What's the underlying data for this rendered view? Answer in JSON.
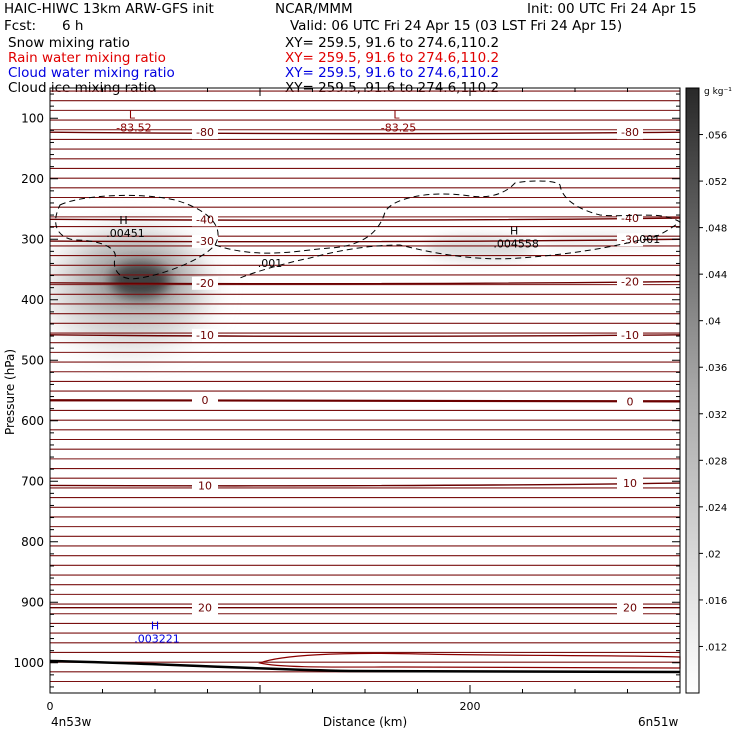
{
  "header": {
    "model": "HAIC-HIWC 13km ARW-GFS init",
    "org": "NCAR/MMM",
    "init": "Init: 00 UTC Fri 24 Apr 15",
    "fcst_label": "Fcst:",
    "fcst_value": "6 h",
    "valid": "Valid: 06 UTC Fri 24 Apr 15 (03 LST Fri 24 Apr 15)",
    "fields": [
      {
        "name": "Snow mixing ratio",
        "xy": "XY= 259.5, 91.6 to 274.6,110.2",
        "color": "#000000"
      },
      {
        "name": "Rain water mixing ratio",
        "xy": "XY= 259.5, 91.6 to 274.6,110.2",
        "color": "#e00000"
      },
      {
        "name": "Cloud water mixing ratio",
        "xy": "XY= 259.5, 91.6 to 274.6,110.2",
        "color": "#0000e0"
      },
      {
        "name": "Cloud ice mixing ratio",
        "xy": "XY= 259.5, 91.6 to 274.6,110.2",
        "color": "#000000"
      }
    ]
  },
  "chart_data": {
    "type": "heatmap",
    "title": "",
    "xlabel": "Distance (km)",
    "ylabel": "Pressure (hPa)",
    "x_range": [
      0,
      300
    ],
    "y_range": [
      1050,
      50
    ],
    "y_ticks": [
      100,
      200,
      300,
      400,
      500,
      600,
      700,
      800,
      900,
      1000
    ],
    "x_ticks": [
      0,
      200
    ],
    "x_end_labels": {
      "left": "4n53w",
      "right": "6n51w"
    },
    "colorbar": {
      "unit": "g kg⁻¹",
      "labels": [
        ".012",
        ".016",
        ".02",
        ".024",
        ".028",
        ".032",
        ".036",
        ".04",
        ".044",
        ".048",
        ".052",
        ".056"
      ],
      "range": [
        0.008,
        0.06
      ]
    },
    "temperature_contours": [
      {
        "level": "-80",
        "p_left": 123,
        "p_right": 123
      },
      {
        "level": "-40",
        "p_left": 267,
        "p_right": 265
      },
      {
        "level": "-30",
        "p_left": 303,
        "p_right": 300
      },
      {
        "level": "-20",
        "p_left": 372,
        "p_right": 370
      },
      {
        "level": "-10",
        "p_left": 458,
        "p_right": 458
      },
      {
        "level": "0",
        "p_left": 566,
        "p_right": 568
      },
      {
        "level": "10",
        "p_left": 707,
        "p_right": 703
      },
      {
        "level": "20",
        "p_left": 909,
        "p_right": 909
      }
    ],
    "extrema": [
      {
        "kind": "L",
        "value": "-83.52",
        "x": 39,
        "p": 110,
        "color": "#8b0000"
      },
      {
        "kind": "L",
        "value": "-83.25",
        "x": 165,
        "p": 110,
        "color": "#8b0000"
      },
      {
        "kind": "H",
        "value": ".00451",
        "x": 35,
        "p": 285,
        "color": "#000000"
      },
      {
        "kind": "H",
        "value": ".004558",
        "x": 221,
        "p": 302,
        "color": "#000000"
      },
      {
        "kind": "H",
        "value": ".003221",
        "x": 50,
        "p": 955,
        "color": "#0000e0"
      }
    ],
    "cloud_ice_contour_label": ".001",
    "snow_maxima": [
      {
        "x": 44,
        "p": 368,
        "value": 0.058
      },
      {
        "x": 200,
        "p": 318,
        "value": 0.018
      }
    ]
  }
}
